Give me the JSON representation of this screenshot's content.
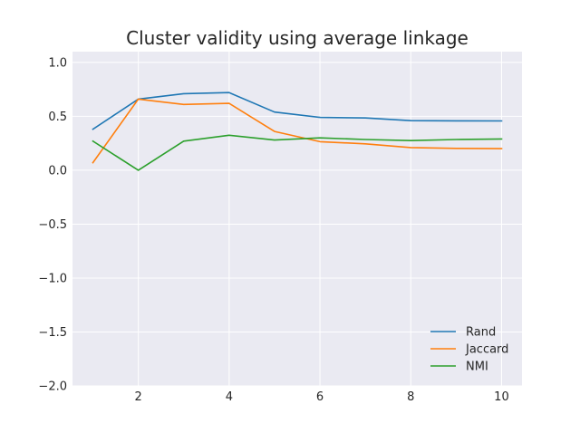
{
  "chart_data": {
    "type": "line",
    "title": "Cluster validity using average linkage",
    "xlabel": "",
    "ylabel": "",
    "x": [
      1,
      2,
      3,
      4,
      5,
      6,
      7,
      8,
      9,
      10
    ],
    "xlim": [
      0.55,
      10.45
    ],
    "ylim": [
      -2.0,
      1.1
    ],
    "xticks": [
      2,
      4,
      6,
      8,
      10
    ],
    "xtick_labels": [
      "2",
      "4",
      "6",
      "8",
      "10"
    ],
    "yticks": [
      -2.0,
      -1.5,
      -1.0,
      -0.5,
      0.0,
      0.5,
      1.0
    ],
    "ytick_labels": [
      "−2.0",
      "−1.5",
      "−1.0",
      "−0.5",
      "0.0",
      "0.5",
      "1.0"
    ],
    "grid": true,
    "legend_position": "lower-right",
    "series": [
      {
        "name": "Rand",
        "color": "#1f77b4",
        "values": [
          0.38,
          0.66,
          0.71,
          0.72,
          0.54,
          0.49,
          0.485,
          0.46,
          0.458,
          0.457
        ]
      },
      {
        "name": "Jaccard",
        "color": "#ff7f0e",
        "values": [
          0.07,
          0.66,
          0.61,
          0.62,
          0.36,
          0.265,
          0.245,
          0.21,
          0.203,
          0.2
        ]
      },
      {
        "name": "NMI",
        "color": "#2ca02c",
        "values": [
          0.27,
          0.0,
          0.27,
          0.325,
          0.28,
          0.3,
          0.285,
          0.275,
          0.285,
          0.29
        ]
      }
    ]
  }
}
